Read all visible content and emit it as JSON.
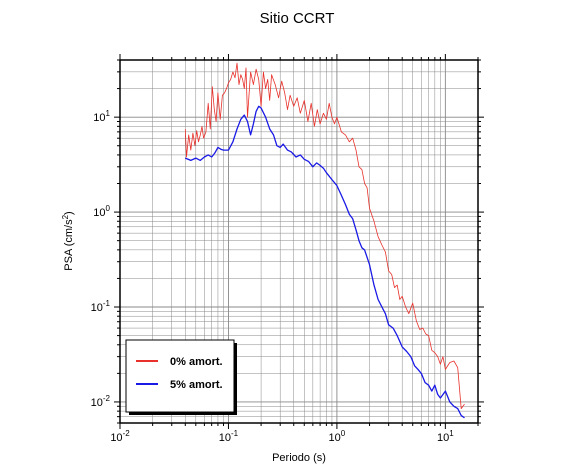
{
  "chart_data": {
    "type": "line",
    "title": "Sitio CCRT",
    "xlabel": "Periodo (s)",
    "ylabel_base": "PSA (cm/s",
    "ylabel_sup": "2",
    "ylabel_close": ")",
    "x_scale": "log",
    "y_scale": "log",
    "xlim": [
      0.01,
      20
    ],
    "ylim": [
      0.006,
      40
    ],
    "grid": true,
    "legend_position": "bottom-left",
    "x_ticks": [
      {
        "base": "10",
        "exp": "-2",
        "value": 0.01
      },
      {
        "base": "10",
        "exp": "-1",
        "value": 0.1
      },
      {
        "base": "10",
        "exp": "0",
        "value": 1
      },
      {
        "base": "10",
        "exp": "1",
        "value": 10
      }
    ],
    "y_ticks": [
      {
        "base": "10",
        "exp": "-2",
        "value": 0.01
      },
      {
        "base": "10",
        "exp": "-1",
        "value": 0.1
      },
      {
        "base": "10",
        "exp": "0",
        "value": 1
      },
      {
        "base": "10",
        "exp": "1",
        "value": 10
      }
    ],
    "series": [
      {
        "name": "0% amort.",
        "color": "#e8312b",
        "x": [
          0.04,
          0.041,
          0.043,
          0.045,
          0.047,
          0.049,
          0.051,
          0.053,
          0.055,
          0.057,
          0.059,
          0.062,
          0.065,
          0.068,
          0.071,
          0.074,
          0.077,
          0.08,
          0.084,
          0.088,
          0.092,
          0.096,
          0.1,
          0.105,
          0.11,
          0.115,
          0.12,
          0.125,
          0.13,
          0.135,
          0.14,
          0.145,
          0.15,
          0.16,
          0.17,
          0.18,
          0.19,
          0.2,
          0.21,
          0.22,
          0.23,
          0.24,
          0.25,
          0.27,
          0.29,
          0.31,
          0.33,
          0.35,
          0.37,
          0.4,
          0.43,
          0.46,
          0.5,
          0.54,
          0.58,
          0.62,
          0.66,
          0.7,
          0.75,
          0.8,
          0.85,
          0.9,
          0.95,
          1.0,
          1.1,
          1.2,
          1.3,
          1.4,
          1.5,
          1.6,
          1.7,
          1.8,
          1.9,
          2.0,
          2.2,
          2.4,
          2.6,
          2.8,
          3.0,
          3.2,
          3.4,
          3.6,
          3.8,
          4.0,
          4.3,
          4.6,
          5.0,
          5.4,
          5.8,
          6.2,
          6.6,
          7.0,
          7.5,
          8.0,
          8.5,
          9.0,
          9.5,
          10,
          11,
          12,
          13,
          14,
          15
        ],
        "y": [
          7.5,
          3.8,
          6.5,
          4.5,
          6.8,
          5.0,
          7.2,
          5.5,
          6.5,
          8.0,
          6.0,
          7.0,
          14.0,
          7.5,
          21.0,
          12.0,
          9.0,
          18.0,
          9.5,
          17.0,
          18.0,
          20.0,
          23.0,
          25.0,
          30.0,
          26.0,
          37.0,
          22.0,
          28.0,
          25.0,
          20.0,
          33.0,
          10.0,
          30.0,
          22.0,
          32.0,
          25.0,
          13.0,
          30.0,
          20.0,
          25.0,
          15.0,
          28.0,
          22.0,
          16.0,
          24.0,
          18.0,
          12.0,
          17.0,
          13.0,
          16.0,
          11.0,
          15.0,
          9.0,
          14.0,
          8.0,
          12.0,
          8.5,
          11.0,
          9.5,
          14.0,
          10.0,
          8.5,
          10.0,
          7.0,
          6.5,
          5.5,
          6.0,
          4.5,
          3.0,
          2.8,
          2.0,
          1.8,
          1.1,
          0.8,
          0.55,
          0.45,
          0.38,
          0.24,
          0.22,
          0.16,
          0.17,
          0.12,
          0.13,
          0.1,
          0.085,
          0.11,
          0.072,
          0.058,
          0.06,
          0.052,
          0.05,
          0.035,
          0.033,
          0.03,
          0.025,
          0.03,
          0.022,
          0.026,
          0.027,
          0.023,
          0.0085,
          0.0095
        ]
      },
      {
        "name": "5% amort.",
        "color": "#1a1ae6",
        "x": [
          0.04,
          0.045,
          0.05,
          0.055,
          0.06,
          0.065,
          0.07,
          0.075,
          0.08,
          0.085,
          0.09,
          0.1,
          0.11,
          0.12,
          0.13,
          0.14,
          0.15,
          0.16,
          0.17,
          0.18,
          0.19,
          0.2,
          0.22,
          0.24,
          0.26,
          0.28,
          0.3,
          0.32,
          0.35,
          0.38,
          0.42,
          0.46,
          0.5,
          0.55,
          0.6,
          0.65,
          0.7,
          0.75,
          0.8,
          0.9,
          1.0,
          1.1,
          1.2,
          1.3,
          1.4,
          1.5,
          1.6,
          1.7,
          1.8,
          2.0,
          2.2,
          2.4,
          2.6,
          2.8,
          3.0,
          3.3,
          3.6,
          4.0,
          4.4,
          4.8,
          5.2,
          5.6,
          6.0,
          6.5,
          7.0,
          7.5,
          8.0,
          8.5,
          9.0,
          10,
          11,
          12,
          13,
          14,
          15
        ],
        "y": [
          3.7,
          3.5,
          3.7,
          3.5,
          3.8,
          4.0,
          3.8,
          4.2,
          4.8,
          4.6,
          4.5,
          4.5,
          5.5,
          7.5,
          9.5,
          10.5,
          9.0,
          6.5,
          8.5,
          11.5,
          13.0,
          12.5,
          10.0,
          7.5,
          6.5,
          5.0,
          4.8,
          5.2,
          4.5,
          4.3,
          3.8,
          4.0,
          3.6,
          3.4,
          3.0,
          3.3,
          3.1,
          2.9,
          2.6,
          2.2,
          1.9,
          1.5,
          1.2,
          0.95,
          0.85,
          0.65,
          0.5,
          0.42,
          0.4,
          0.28,
          0.17,
          0.12,
          0.1,
          0.085,
          0.065,
          0.06,
          0.05,
          0.038,
          0.034,
          0.03,
          0.024,
          0.022,
          0.02,
          0.016,
          0.015,
          0.013,
          0.015,
          0.012,
          0.011,
          0.013,
          0.01,
          0.009,
          0.0085,
          0.0072,
          0.0068
        ]
      }
    ]
  }
}
